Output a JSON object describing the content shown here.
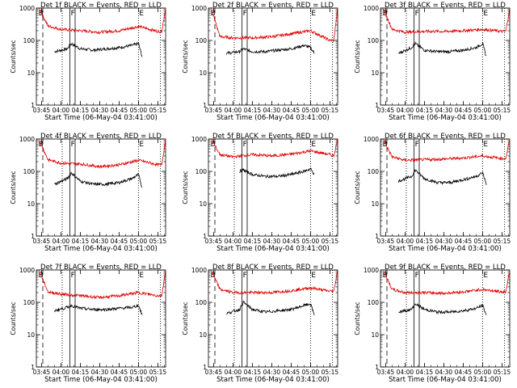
{
  "figure": {
    "background": "#ffffff",
    "axis_color": "#000000",
    "events_color": "#000000",
    "lld_color": "#e00000"
  },
  "shared_axes": {
    "ylabel": "Counts/sec",
    "xlabel": "Start Time (06-May-04 03:41:00)",
    "x_ticks": [
      "03:45",
      "04:00",
      "04:15",
      "04:30",
      "04:45",
      "05:00",
      "05:15"
    ],
    "x_range": [
      "03:41",
      "05:21"
    ],
    "y_ticks": [
      "1",
      "10",
      "100",
      "1000"
    ],
    "y_range": [
      1,
      1000
    ],
    "y_scale": "log",
    "marker_labels": [
      "B",
      "F",
      "E"
    ]
  },
  "chart_data": [
    {
      "type": "line",
      "title": "Det 1f BLACK = Events, RED = LLD",
      "xlabel": "Start Time (06-May-04 03:41:00)",
      "ylabel": "Counts/sec",
      "yscale": "log",
      "ylim": [
        1,
        1000
      ],
      "series": [
        {
          "name": "Events",
          "color": "#000000",
          "x": [
            "03:55",
            "04:05",
            "04:08",
            "04:15",
            "04:25",
            "04:35",
            "04:45",
            "04:55",
            "05:00",
            "05:03"
          ],
          "y": [
            45,
            55,
            80,
            55,
            50,
            55,
            60,
            70,
            80,
            30
          ]
        },
        {
          "name": "LLD",
          "color": "#e00000",
          "x": [
            "03:43",
            "03:50",
            "04:00",
            "04:15",
            "04:30",
            "04:45",
            "05:00",
            "05:15",
            "05:18",
            "05:21"
          ],
          "y": [
            1000,
            280,
            220,
            200,
            180,
            200,
            270,
            190,
            190,
            1000
          ]
        }
      ]
    },
    {
      "type": "line",
      "title": "Det 2f BLACK = Events, RED = LLD",
      "xlabel": "Start Time (06-May-04 03:41:00)",
      "ylabel": "Counts/sec",
      "yscale": "log",
      "ylim": [
        1,
        1000
      ],
      "series": [
        {
          "name": "Events",
          "color": "#000000",
          "x": [
            "03:55",
            "04:05",
            "04:08",
            "04:15",
            "04:25",
            "04:35",
            "04:45",
            "04:55",
            "05:00",
            "05:03"
          ],
          "y": [
            40,
            45,
            55,
            45,
            45,
            50,
            55,
            70,
            60,
            40
          ]
        },
        {
          "name": "LLD",
          "color": "#e00000",
          "x": [
            "03:43",
            "03:50",
            "04:00",
            "04:15",
            "04:30",
            "04:45",
            "05:00",
            "05:15",
            "05:18",
            "05:21"
          ],
          "y": [
            1000,
            130,
            120,
            120,
            130,
            160,
            200,
            100,
            100,
            1000
          ]
        }
      ]
    },
    {
      "type": "line",
      "title": "Det 3f BLACK = Events, RED = LLD",
      "xlabel": "Start Time (06-May-04 03:41:00)",
      "ylabel": "Counts/sec",
      "yscale": "log",
      "ylim": [
        1,
        1000
      ],
      "series": [
        {
          "name": "Events",
          "color": "#000000",
          "x": [
            "03:55",
            "04:05",
            "04:08",
            "04:15",
            "04:25",
            "04:35",
            "04:45",
            "04:55",
            "05:00",
            "05:03"
          ],
          "y": [
            40,
            60,
            80,
            50,
            45,
            45,
            50,
            60,
            80,
            30
          ]
        },
        {
          "name": "LLD",
          "color": "#e00000",
          "x": [
            "03:43",
            "03:50",
            "04:00",
            "04:15",
            "04:30",
            "04:45",
            "05:00",
            "05:15",
            "05:18",
            "05:21"
          ],
          "y": [
            1000,
            220,
            180,
            190,
            190,
            200,
            220,
            190,
            190,
            1000
          ]
        }
      ]
    },
    {
      "type": "line",
      "title": "Det 4f BLACK = Events, RED = LLD",
      "xlabel": "Start Time (06-May-04 03:41:00)",
      "ylabel": "Counts/sec",
      "yscale": "log",
      "ylim": [
        1,
        1000
      ],
      "series": [
        {
          "name": "Events",
          "color": "#000000",
          "x": [
            "03:55",
            "04:05",
            "04:08",
            "04:15",
            "04:25",
            "04:35",
            "04:45",
            "04:55",
            "05:00",
            "05:03"
          ],
          "y": [
            40,
            60,
            90,
            50,
            40,
            40,
            45,
            60,
            80,
            30
          ]
        },
        {
          "name": "LLD",
          "color": "#e00000",
          "x": [
            "03:43",
            "03:50",
            "04:00",
            "04:15",
            "04:30",
            "04:45",
            "05:00",
            "05:15",
            "05:18",
            "05:21"
          ],
          "y": [
            1000,
            230,
            180,
            170,
            140,
            160,
            220,
            160,
            160,
            1000
          ]
        }
      ]
    },
    {
      "type": "line",
      "title": "Det 5f BLACK = Events, RED = LLD",
      "xlabel": "Start Time (06-May-04 03:41:00)",
      "ylabel": "Counts/sec",
      "yscale": "log",
      "ylim": [
        1,
        1000
      ],
      "series": [
        {
          "name": "Events",
          "color": "#000000",
          "x": [
            "04:05",
            "04:08",
            "04:15",
            "04:25",
            "04:35",
            "04:45",
            "04:55",
            "05:00",
            "05:03"
          ],
          "y": [
            100,
            110,
            80,
            70,
            70,
            80,
            100,
            120,
            80
          ]
        },
        {
          "name": "LLD",
          "color": "#e00000",
          "x": [
            "03:43",
            "03:50",
            "04:00",
            "04:15",
            "04:30",
            "04:45",
            "05:00",
            "05:15",
            "05:18",
            "05:21"
          ],
          "y": [
            1000,
            330,
            280,
            330,
            300,
            340,
            430,
            330,
            300,
            1000
          ]
        }
      ]
    },
    {
      "type": "line",
      "title": "Det 6f BLACK = Events, RED = LLD",
      "xlabel": "Start Time (06-May-04 03:41:00)",
      "ylabel": "Counts/sec",
      "yscale": "log",
      "ylim": [
        1,
        1000
      ],
      "series": [
        {
          "name": "Events",
          "color": "#000000",
          "x": [
            "03:55",
            "04:05",
            "04:08",
            "04:15",
            "04:25",
            "04:35",
            "04:45",
            "04:55",
            "05:00",
            "05:03"
          ],
          "y": [
            50,
            70,
            110,
            60,
            45,
            45,
            55,
            70,
            90,
            40
          ]
        },
        {
          "name": "LLD",
          "color": "#e00000",
          "x": [
            "03:43",
            "03:50",
            "04:00",
            "04:15",
            "04:30",
            "04:45",
            "05:00",
            "05:15",
            "05:18",
            "05:21"
          ],
          "y": [
            1000,
            280,
            220,
            230,
            240,
            260,
            300,
            250,
            250,
            1000
          ]
        }
      ]
    },
    {
      "type": "line",
      "title": "Det 7f BLACK = Events, RED = LLD",
      "xlabel": "Start Time (06-May-04 03:41:00)",
      "ylabel": "Counts/sec",
      "yscale": "log",
      "ylim": [
        1,
        1000
      ],
      "series": [
        {
          "name": "Events",
          "color": "#000000",
          "x": [
            "03:55",
            "04:05",
            "04:08",
            "04:15",
            "04:25",
            "04:35",
            "04:45",
            "04:55",
            "05:00",
            "05:03"
          ],
          "y": [
            55,
            70,
            80,
            65,
            60,
            60,
            65,
            70,
            80,
            40
          ]
        },
        {
          "name": "LLD",
          "color": "#e00000",
          "x": [
            "03:43",
            "03:50",
            "04:00",
            "04:15",
            "04:30",
            "04:45",
            "05:00",
            "05:15",
            "05:18",
            "05:21"
          ],
          "y": [
            1000,
            210,
            180,
            160,
            140,
            160,
            200,
            160,
            160,
            1000
          ]
        }
      ]
    },
    {
      "type": "line",
      "title": "Det 8f BLACK = Events, RED = LLD",
      "xlabel": "Start Time (06-May-04 03:41:00)",
      "ylabel": "Counts/sec",
      "yscale": "log",
      "ylim": [
        1,
        1000
      ],
      "series": [
        {
          "name": "Events",
          "color": "#000000",
          "x": [
            "03:55",
            "04:05",
            "04:08",
            "04:15",
            "04:25",
            "04:35",
            "04:45",
            "04:55",
            "05:00",
            "05:03"
          ],
          "y": [
            45,
            60,
            100,
            60,
            50,
            55,
            60,
            80,
            90,
            40
          ]
        },
        {
          "name": "LLD",
          "color": "#e00000",
          "x": [
            "03:43",
            "03:50",
            "04:00",
            "04:15",
            "04:30",
            "04:45",
            "05:00",
            "05:15",
            "05:18",
            "05:21"
          ],
          "y": [
            1000,
            250,
            200,
            200,
            200,
            230,
            280,
            220,
            220,
            1000
          ]
        }
      ]
    },
    {
      "type": "line",
      "title": "Det 9f BLACK = Events, RED = LLD",
      "xlabel": "Start Time (06-May-04 03:41:00)",
      "ylabel": "Counts/sec",
      "yscale": "log",
      "ylim": [
        1,
        1000
      ],
      "series": [
        {
          "name": "Events",
          "color": "#000000",
          "x": [
            "03:55",
            "04:05",
            "04:08",
            "04:15",
            "04:25",
            "04:35",
            "04:45",
            "04:55",
            "05:00",
            "05:03"
          ],
          "y": [
            50,
            60,
            90,
            60,
            50,
            50,
            55,
            65,
            80,
            40
          ]
        },
        {
          "name": "LLD",
          "color": "#e00000",
          "x": [
            "03:43",
            "03:50",
            "04:00",
            "04:15",
            "04:30",
            "04:45",
            "05:00",
            "05:15",
            "05:18",
            "05:21"
          ],
          "y": [
            1000,
            250,
            200,
            200,
            190,
            210,
            250,
            210,
            210,
            1000
          ]
        }
      ]
    }
  ]
}
